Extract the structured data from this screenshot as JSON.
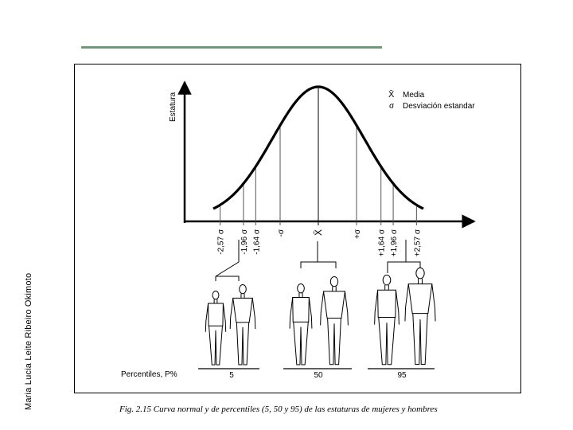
{
  "slide": {
    "side_author": "Maria Lucia Leite Ribeiro Okimoto",
    "caption": "Fig. 2.15  Curva normal y de percentiles (5, 50 y 95) de las estaturas de mujeres y hombres"
  },
  "figure": {
    "y_axis_label": "Estatura",
    "legend": [
      {
        "symbol": "X̄",
        "text": "Media"
      },
      {
        "symbol": "σ",
        "text": "Desviación estandar"
      }
    ],
    "sigma_marks": [
      {
        "label": "-2,57 σ",
        "value": -2.57
      },
      {
        "label": "-1,96 σ",
        "value": -1.96
      },
      {
        "label": "-1,64 σ",
        "value": -1.64
      },
      {
        "label": "-σ",
        "value": -1
      },
      {
        "label": "X̄",
        "value": 0
      },
      {
        "label": "+σ",
        "value": 1
      },
      {
        "label": "+1,64 σ",
        "value": 1.64
      },
      {
        "label": "+1,96 σ",
        "value": 1.96
      },
      {
        "label": "+2,57 σ",
        "value": 2.57
      }
    ],
    "percentiles_label": "Percentiles, P%",
    "percentile_groups": [
      {
        "label": "5"
      },
      {
        "label": "50"
      },
      {
        "label": "95"
      }
    ]
  }
}
